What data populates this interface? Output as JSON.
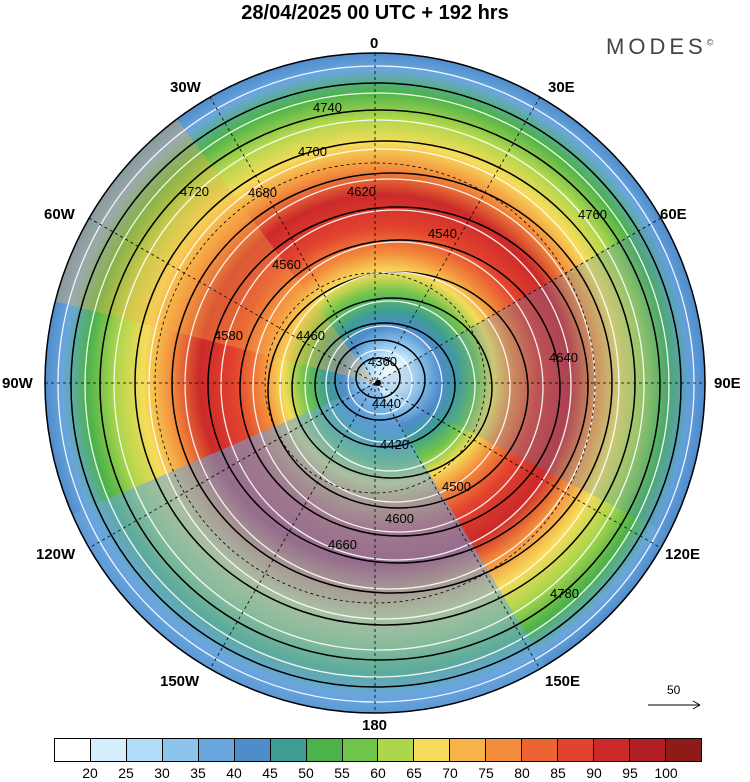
{
  "title": "28/04/2025  00 UTC  + 192 hrs",
  "brand": "MODES",
  "brand_mark": "©",
  "lon_labels": {
    "n": "0",
    "ne": "30E",
    "ene": "60E",
    "e": "90E",
    "ese": "120E",
    "se": "150E",
    "s": "180",
    "sw": "150W",
    "wsw": "120W",
    "w": "90W",
    "wnw": "60W",
    "nw": "30W"
  },
  "contour_labels": [
    "4360",
    "4420",
    "4440",
    "4460",
    "4500",
    "4540",
    "4560",
    "4580",
    "4600",
    "4620",
    "4640",
    "4660",
    "4680",
    "4700",
    "4720",
    "4740",
    "4760",
    "4780"
  ],
  "colorbar": {
    "colors": [
      "#ffffff",
      "#d6effc",
      "#b0dcf6",
      "#8cc4ee",
      "#6aa6de",
      "#4f8cca",
      "#3d9e94",
      "#4cb24a",
      "#6fc44a",
      "#aed64c",
      "#f6dc5a",
      "#f7b24a",
      "#f38c3c",
      "#ec6432",
      "#e2422e",
      "#cc2a2a",
      "#b01e24",
      "#8e1a1a"
    ],
    "ticks": [
      "20",
      "25",
      "30",
      "35",
      "40",
      "45",
      "50",
      "55",
      "60",
      "65",
      "70",
      "75",
      "80",
      "85",
      "90",
      "95",
      "100"
    ]
  },
  "vector_scale_label": "50"
}
